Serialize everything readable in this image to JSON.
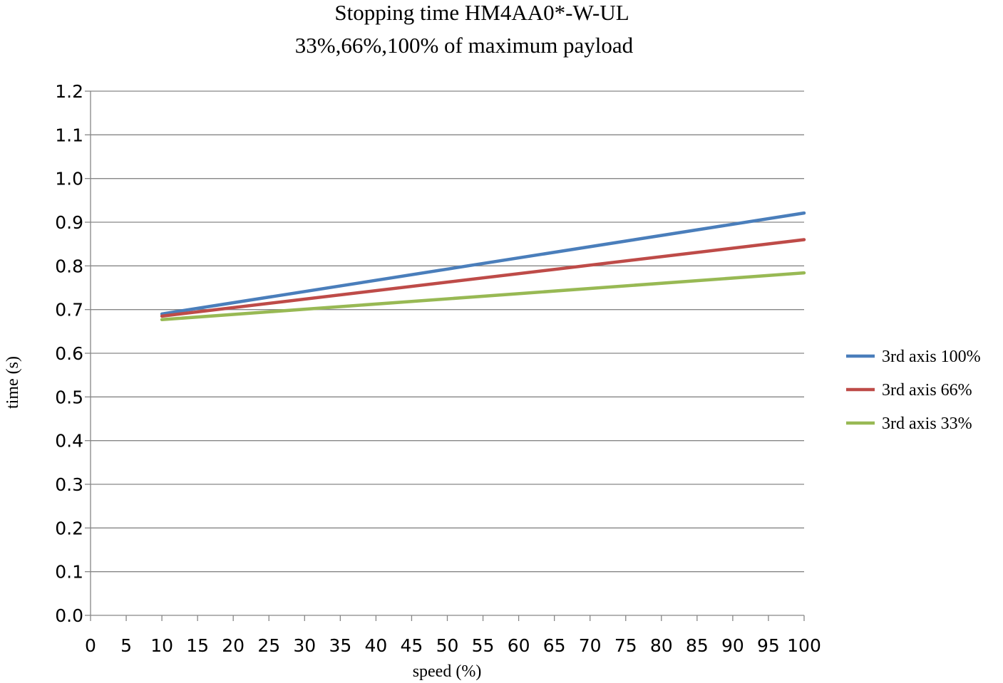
{
  "chart_data": {
    "type": "line",
    "title": "Stopping time HM4AA0*-W-UL",
    "subtitle": "33%,66%,100% of maximum payload",
    "xlabel": "speed (%)",
    "ylabel": "time (s)",
    "xlim": [
      0,
      100
    ],
    "ylim": [
      0,
      1.2
    ],
    "x_ticks": [
      "0",
      "5",
      "10",
      "15",
      "20",
      "25",
      "30",
      "35",
      "40",
      "45",
      "50",
      "55",
      "60",
      "65",
      "70",
      "75",
      "80",
      "85",
      "90",
      "95",
      "100"
    ],
    "y_ticks": [
      "0.0",
      "0.1",
      "0.2",
      "0.3",
      "0.4",
      "0.5",
      "0.6",
      "0.7",
      "0.8",
      "0.9",
      "1.0",
      "1.1",
      "1.2"
    ],
    "grid": "horizontal",
    "legend_position": "right",
    "series": [
      {
        "name": "3rd axis 100%",
        "color": "#4a7ebb",
        "x": [
          10,
          100
        ],
        "y": [
          0.69,
          0.921
        ]
      },
      {
        "name": "3rd axis 66%",
        "color": "#be4b48",
        "x": [
          10,
          100
        ],
        "y": [
          0.685,
          0.86
        ]
      },
      {
        "name": "3rd axis 33%",
        "color": "#98b954",
        "x": [
          10,
          100
        ],
        "y": [
          0.677,
          0.784
        ]
      }
    ]
  }
}
